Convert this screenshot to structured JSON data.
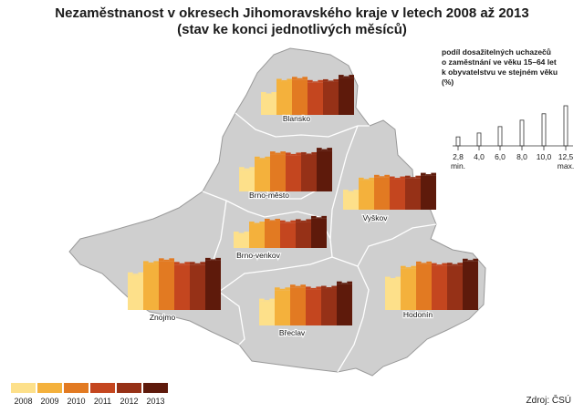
{
  "title": "Nezaměstnanost v okresech Jihomoravského kraje v letech 2008 až 2013",
  "subtitle": "(stav ke konci jednotlivých měsíců)",
  "indicator_legend": {
    "text": [
      "podíl dosažitelných uchazečů",
      "o zaměstnání ve věku 15–64 let",
      "k obyvatelstvu ve stejném věku",
      "(%)"
    ],
    "ticks": [
      "2,8",
      "4,0",
      "6,0",
      "8,0",
      "10,0",
      "12,5"
    ],
    "tick_values": [
      2.8,
      4.0,
      6.0,
      8.0,
      10.0,
      12.5
    ],
    "min_label": "min.",
    "max_label": "max."
  },
  "year_legend": {
    "years": [
      "2008",
      "2009",
      "2010",
      "2011",
      "2012",
      "2013"
    ],
    "colors": [
      "#fde08a",
      "#f4b13c",
      "#e27a22",
      "#c4461f",
      "#963117",
      "#5e1a0b"
    ]
  },
  "source": "Zdroj: ČSÚ",
  "colors": {
    "region_fill": "#cfcfcf",
    "region_stroke": "#9a9a9a",
    "district_border": "#ffffff"
  },
  "chart_data": {
    "type": "bar",
    "units": "%",
    "series_by_year": [
      "2008",
      "2009",
      "2010",
      "2011",
      "2012",
      "2013"
    ],
    "districts": [
      {
        "name": "Blansko",
        "values": [
          5.0,
          8.3,
          8.8,
          8.0,
          8.2,
          9.3
        ]
      },
      {
        "name": "Brno-město",
        "values": [
          5.4,
          8.0,
          9.3,
          9.0,
          9.1,
          10.2
        ]
      },
      {
        "name": "Vyškov",
        "values": [
          4.3,
          7.3,
          8.0,
          7.6,
          7.8,
          8.5
        ]
      },
      {
        "name": "Brno-venkov",
        "values": [
          3.4,
          5.9,
          6.6,
          6.2,
          6.5,
          7.3
        ]
      },
      {
        "name": "Znojmo",
        "values": [
          8.7,
          11.5,
          12.2,
          11.3,
          11.3,
          12.3
        ]
      },
      {
        "name": "Břeclav",
        "values": [
          6.0,
          8.8,
          9.5,
          9.0,
          9.2,
          10.3
        ]
      },
      {
        "name": "Hodonín",
        "values": [
          7.6,
          10.3,
          11.4,
          11.0,
          11.1,
          12.1
        ]
      }
    ]
  }
}
